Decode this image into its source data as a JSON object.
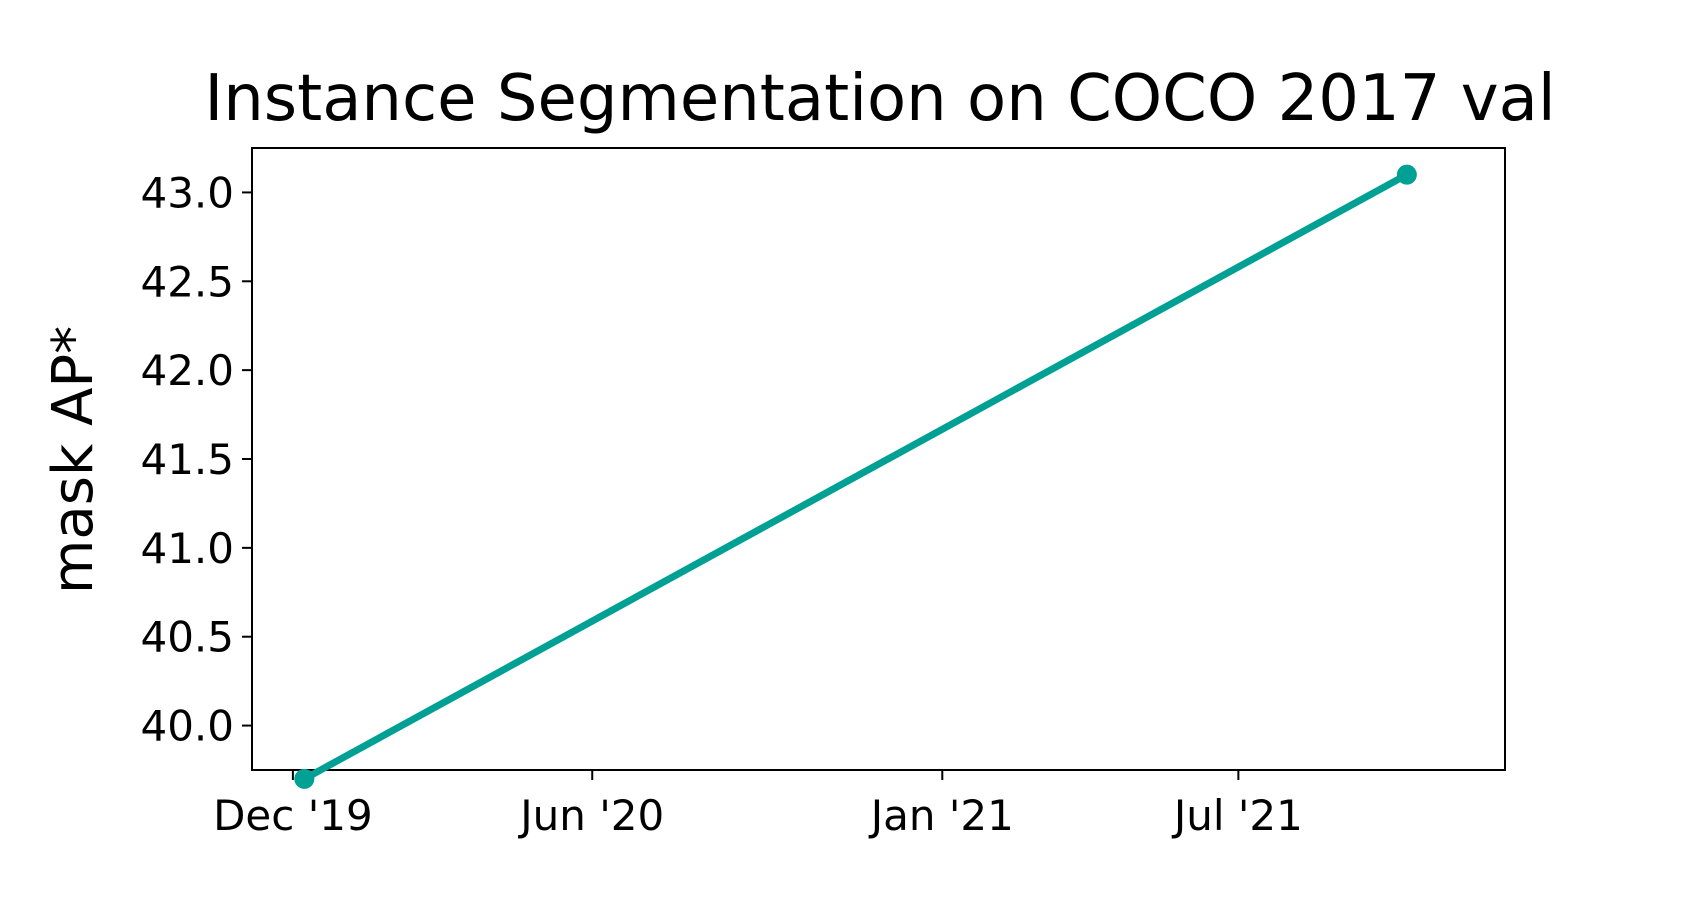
{
  "chart_data": {
    "type": "line",
    "title": "Instance Segmentation on COCO 2017 val",
    "xlabel": "",
    "ylabel": "mask AP*",
    "x_ticks": [
      {
        "date": "2019-12-01",
        "label": "Dec '19"
      },
      {
        "date": "2020-06-01",
        "label": "Jun '20"
      },
      {
        "date": "2021-01-01",
        "label": "Jan '21"
      },
      {
        "date": "2021-07-01",
        "label": "Jul '21"
      }
    ],
    "y_ticks": [
      {
        "value": 40.0,
        "label": "40.0"
      },
      {
        "value": 40.5,
        "label": "40.5"
      },
      {
        "value": 41.0,
        "label": "41.0"
      },
      {
        "value": 41.5,
        "label": "41.5"
      },
      {
        "value": 42.0,
        "label": "42.0"
      },
      {
        "value": 42.5,
        "label": "42.5"
      },
      {
        "value": 43.0,
        "label": "43.0"
      }
    ],
    "xlim": [
      "2019-11-06",
      "2021-12-11"
    ],
    "ylim": [
      39.75,
      43.25
    ],
    "grid": false,
    "legend": "none",
    "series": [
      {
        "color": "#00a094",
        "points": [
          {
            "x": "2019-12-08",
            "y": 39.7
          },
          {
            "x": "2021-10-12",
            "y": 43.1
          }
        ]
      }
    ]
  }
}
